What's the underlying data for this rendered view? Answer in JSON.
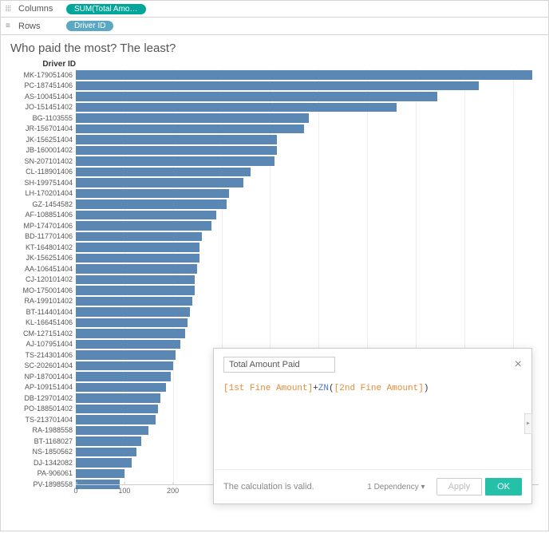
{
  "shelves": {
    "columns_label": "Columns",
    "rows_label": "Rows",
    "columns_pill": "SUM(Total Amount P...",
    "rows_pill": "Driver ID"
  },
  "chart": {
    "type": "bar",
    "title": "Who paid the most? The least?",
    "y_header": "Driver ID",
    "x_label": "Total Amount Paid",
    "bar_color": "#5b87b5",
    "background_color": "#ffffff",
    "grid_color": "#eeeeee",
    "xlim": [
      0,
      950
    ],
    "xticks": [
      0,
      100,
      200,
      300,
      400,
      500,
      600,
      700,
      800,
      900
    ],
    "bars": [
      {
        "label": "MK-179051406",
        "value": 940
      },
      {
        "label": "PC-187451406",
        "value": 830
      },
      {
        "label": "AS-100451404",
        "value": 745
      },
      {
        "label": "JO-151451402",
        "value": 660
      },
      {
        "label": "BG-1103555",
        "value": 480
      },
      {
        "label": "JR-156701404",
        "value": 470
      },
      {
        "label": "JK-156251404",
        "value": 415
      },
      {
        "label": "JB-160001402",
        "value": 415
      },
      {
        "label": "SN-207101402",
        "value": 410
      },
      {
        "label": "CL-118901406",
        "value": 360
      },
      {
        "label": "SH-199751404",
        "value": 345
      },
      {
        "label": "LH-170201404",
        "value": 315
      },
      {
        "label": "GZ-1454582",
        "value": 310
      },
      {
        "label": "AF-108851406",
        "value": 290
      },
      {
        "label": "MP-174701406",
        "value": 280
      },
      {
        "label": "BD-117701406",
        "value": 260
      },
      {
        "label": "KT-164801402",
        "value": 255
      },
      {
        "label": "JK-156251406",
        "value": 255
      },
      {
        "label": "AA-106451404",
        "value": 250
      },
      {
        "label": "CJ-120101402",
        "value": 245
      },
      {
        "label": "MO-175001406",
        "value": 245
      },
      {
        "label": "RA-199101402",
        "value": 240
      },
      {
        "label": "BT-114401404",
        "value": 235
      },
      {
        "label": "KL-166451406",
        "value": 230
      },
      {
        "label": "CM-127151402",
        "value": 225
      },
      {
        "label": "AJ-107951404",
        "value": 215
      },
      {
        "label": "TS-214301406",
        "value": 205
      },
      {
        "label": "SC-202601404",
        "value": 200
      },
      {
        "label": "NP-187001404",
        "value": 195
      },
      {
        "label": "AP-109151404",
        "value": 185
      },
      {
        "label": "DB-129701402",
        "value": 175
      },
      {
        "label": "PO-188501402",
        "value": 170
      },
      {
        "label": "TS-213701404",
        "value": 165
      },
      {
        "label": "RA-1988558",
        "value": 150
      },
      {
        "label": "BT-1168027",
        "value": 135
      },
      {
        "label": "NS-1850562",
        "value": 125
      },
      {
        "label": "DJ-1342082",
        "value": 115
      },
      {
        "label": "PA-906061",
        "value": 100
      },
      {
        "label": "PV-1898558",
        "value": 90
      }
    ]
  },
  "dialog": {
    "field_name": "Total Amount Paid",
    "formula_part1": "[1st Fine Amount]",
    "formula_plus": "+",
    "formula_fn": "ZN",
    "formula_paren_open": "(",
    "formula_part2": "[2nd Fine Amount]",
    "formula_paren_close": ")",
    "status": "The calculation is valid.",
    "dependency": "1 Dependency",
    "apply_label": "Apply",
    "ok_label": "OK"
  }
}
